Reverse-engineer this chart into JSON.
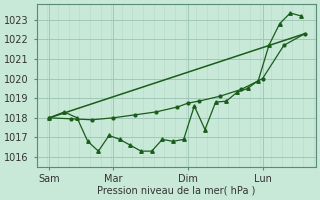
{
  "background_color": "#c8e8d8",
  "grid_color": "#a0c8b8",
  "line_color": "#1a5c1a",
  "xlabel": "Pression niveau de la mer( hPa )",
  "ylim": [
    1015.5,
    1023.8
  ],
  "yticks": [
    1016,
    1017,
    1018,
    1019,
    1020,
    1021,
    1022,
    1023
  ],
  "xtick_labels": [
    "Sam",
    "Mar",
    "Dim",
    "Lun"
  ],
  "xtick_positions": [
    0.5,
    3.5,
    7.0,
    10.5
  ],
  "vline_positions": [
    0.5,
    3.5,
    7.0,
    10.5
  ],
  "xlim": [
    -0.1,
    13.0
  ],
  "line1_x": [
    0.5,
    1.2,
    1.8,
    2.3,
    2.8,
    3.3,
    3.8,
    4.3,
    4.8,
    5.3,
    5.8,
    6.3,
    6.8,
    7.3,
    7.8,
    8.3,
    8.8,
    9.3,
    9.8,
    10.3,
    10.8,
    11.3,
    11.8,
    12.3
  ],
  "line1_y": [
    1018.0,
    1018.3,
    1018.0,
    1016.8,
    1016.3,
    1017.1,
    1016.9,
    1016.6,
    1016.3,
    1016.3,
    1016.9,
    1016.8,
    1016.9,
    1018.6,
    1017.4,
    1018.8,
    1018.85,
    1019.3,
    1019.5,
    1019.9,
    1021.7,
    1022.8,
    1023.35,
    1023.2
  ],
  "line2_x": [
    0.5,
    1.5,
    2.5,
    3.5,
    4.5,
    5.5,
    6.5,
    7.0,
    7.5,
    8.5,
    9.5,
    10.5,
    11.5,
    12.5
  ],
  "line2_y": [
    1018.0,
    1017.95,
    1017.9,
    1018.0,
    1018.15,
    1018.3,
    1018.55,
    1018.75,
    1018.85,
    1019.1,
    1019.45,
    1020.0,
    1021.7,
    1022.3
  ],
  "line3_x": [
    0.5,
    12.5
  ],
  "line3_y": [
    1018.0,
    1022.3
  ]
}
